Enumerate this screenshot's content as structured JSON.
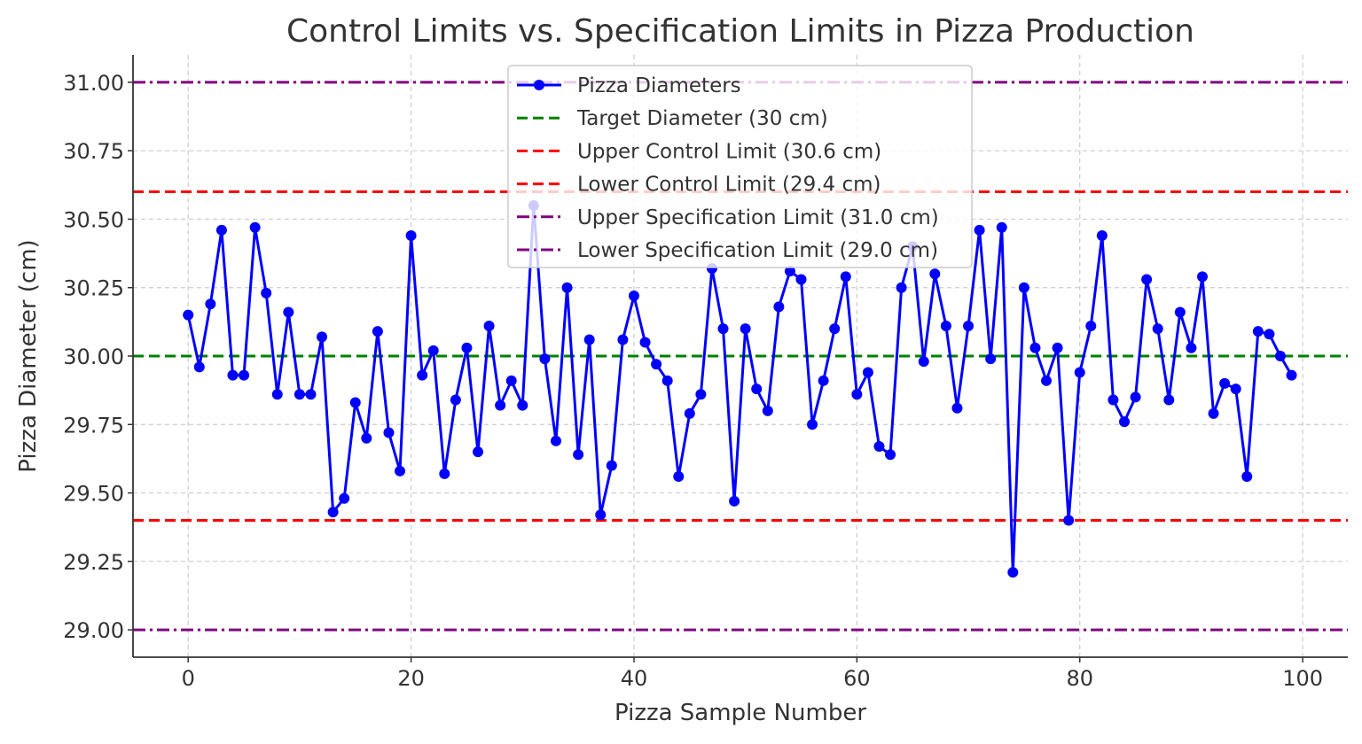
{
  "chart_data": {
    "type": "line",
    "title": "Control Limits vs. Specification Limits in Pizza Production",
    "xlabel": "Pizza Sample Number",
    "ylabel": "Pizza Diameter (cm)",
    "xlim": [
      -4.95,
      104.05
    ],
    "ylim": [
      28.9,
      31.1
    ],
    "xticks": [
      0,
      20,
      40,
      60,
      80,
      100
    ],
    "yticks": [
      29.0,
      29.25,
      29.5,
      29.75,
      30.0,
      30.25,
      30.5,
      30.75,
      31.0
    ],
    "ytick_labels": [
      "29.00",
      "29.25",
      "29.50",
      "29.75",
      "30.00",
      "30.25",
      "30.50",
      "30.75",
      "31.00"
    ],
    "grid": true,
    "legend_position": "top-center",
    "series": [
      {
        "name": "Pizza Diameters",
        "color": "#0000ff",
        "marker": "circle",
        "values": [
          30.15,
          29.96,
          30.19,
          30.46,
          29.93,
          29.93,
          30.47,
          30.23,
          29.86,
          30.16,
          29.86,
          29.86,
          30.07,
          29.43,
          29.48,
          29.83,
          29.7,
          30.09,
          29.72,
          29.58,
          30.44,
          29.93,
          30.02,
          29.57,
          29.84,
          30.03,
          29.65,
          30.11,
          29.82,
          29.91,
          29.82,
          30.55,
          29.99,
          29.69,
          30.25,
          29.64,
          30.06,
          29.42,
          29.6,
          30.06,
          30.22,
          30.05,
          29.97,
          29.91,
          29.56,
          29.79,
          29.86,
          30.32,
          30.1,
          29.47,
          30.1,
          29.88,
          29.8,
          30.18,
          30.31,
          30.28,
          29.75,
          29.91,
          30.1,
          30.29,
          29.86,
          29.94,
          29.67,
          29.64,
          30.25,
          30.4,
          29.98,
          30.3,
          30.11,
          29.81,
          30.11,
          30.46,
          29.99,
          30.47,
          29.21,
          30.25,
          30.03,
          29.91,
          30.03,
          29.4,
          29.94,
          30.11,
          30.44,
          29.84,
          29.76,
          29.85,
          30.28,
          30.1,
          29.84,
          30.16,
          30.03,
          30.29,
          29.79,
          29.9,
          29.88,
          29.56,
          30.09,
          30.08,
          30.0,
          29.93
        ]
      }
    ],
    "reference_lines": [
      {
        "name": "Target Diameter (30 cm)",
        "value": 30.0,
        "color": "#008000",
        "style": "dashed"
      },
      {
        "name": "Upper Control Limit (30.6 cm)",
        "value": 30.6,
        "color": "#ff0000",
        "style": "dashed"
      },
      {
        "name": "Lower Control Limit (29.4 cm)",
        "value": 29.4,
        "color": "#ff0000",
        "style": "dashed"
      },
      {
        "name": "Upper Specification Limit (31.0 cm)",
        "value": 31.0,
        "color": "#800080",
        "style": "dashdot"
      },
      {
        "name": "Lower Specification Limit (29.0 cm)",
        "value": 29.0,
        "color": "#800080",
        "style": "dashdot"
      }
    ]
  }
}
